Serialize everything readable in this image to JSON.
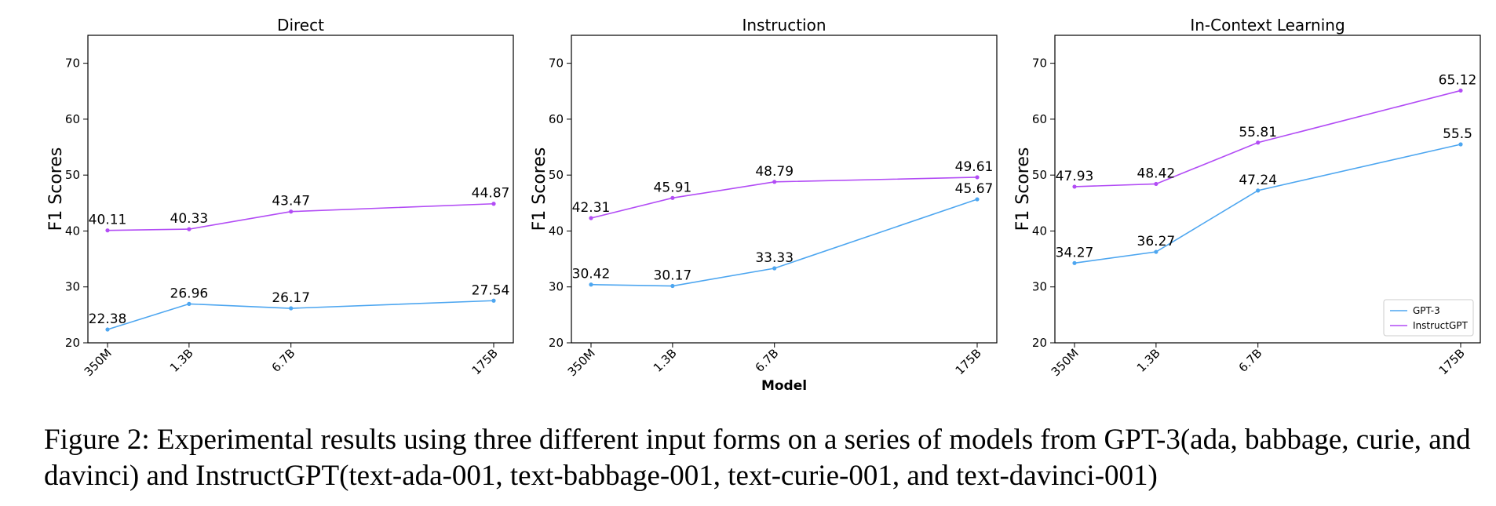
{
  "figure": {
    "xlabel": "Model",
    "caption": "Figure 2: Experimental results using three different input forms on a series of models from GPT-3(ada, babbage, curie, and davinci) and InstructGPT(text-ada-001, text-babbage-001, text-curie-001, and text-davinci-001)"
  },
  "chart_data": [
    {
      "type": "line",
      "title": "Direct",
      "xlabel": "",
      "ylabel": "F1 Scores",
      "categories": [
        "350M",
        "1.3B",
        "6.7B",
        "175B"
      ],
      "x": [
        0.35,
        1.3,
        6.7,
        175
      ],
      "x_scale": "log",
      "ylim": [
        20,
        75
      ],
      "yticks": [
        20,
        30,
        40,
        50,
        60,
        70
      ],
      "series": [
        {
          "name": "GPT-3",
          "values": [
            22.38,
            26.96,
            26.17,
            27.54
          ],
          "labels": [
            "22.38",
            "26.96",
            "26.17",
            "27.54"
          ],
          "color": "#4da6f0"
        },
        {
          "name": "InstructGPT",
          "values": [
            40.11,
            40.33,
            43.47,
            44.87
          ],
          "labels": [
            "40.11",
            "40.33",
            "43.47",
            "44.87"
          ],
          "color": "#b24cf5"
        }
      ]
    },
    {
      "type": "line",
      "title": "Instruction",
      "xlabel": "Model",
      "ylabel": "F1 Scores",
      "categories": [
        "350M",
        "1.3B",
        "6.7B",
        "175B"
      ],
      "x": [
        0.35,
        1.3,
        6.7,
        175
      ],
      "x_scale": "log",
      "ylim": [
        20,
        75
      ],
      "yticks": [
        20,
        30,
        40,
        50,
        60,
        70
      ],
      "series": [
        {
          "name": "GPT-3",
          "values": [
            30.42,
            30.17,
            33.33,
            45.67
          ],
          "labels": [
            "30.42",
            "30.17",
            "33.33",
            "45.67"
          ],
          "color": "#4da6f0"
        },
        {
          "name": "InstructGPT",
          "values": [
            42.31,
            45.91,
            48.79,
            49.61
          ],
          "labels": [
            "42.31",
            "45.91",
            "48.79",
            "49.61"
          ],
          "color": "#b24cf5"
        }
      ]
    },
    {
      "type": "line",
      "title": "In-Context Learning",
      "xlabel": "",
      "ylabel": "F1 Scores",
      "categories": [
        "350M",
        "1.3B",
        "6.7B",
        "175B"
      ],
      "x": [
        0.35,
        1.3,
        6.7,
        175
      ],
      "x_scale": "log",
      "ylim": [
        20,
        75
      ],
      "yticks": [
        20,
        30,
        40,
        50,
        60,
        70
      ],
      "legend": "bottom-right",
      "series": [
        {
          "name": "GPT-3",
          "values": [
            34.27,
            36.27,
            47.24,
            55.5
          ],
          "labels": [
            "34.27",
            "36.27",
            "47.24",
            "55.5"
          ],
          "color": "#4da6f0"
        },
        {
          "name": "InstructGPT",
          "values": [
            47.93,
            48.42,
            55.81,
            65.12
          ],
          "labels": [
            "47.93",
            "48.42",
            "55.81",
            "65.12"
          ],
          "color": "#b24cf5"
        }
      ]
    }
  ]
}
